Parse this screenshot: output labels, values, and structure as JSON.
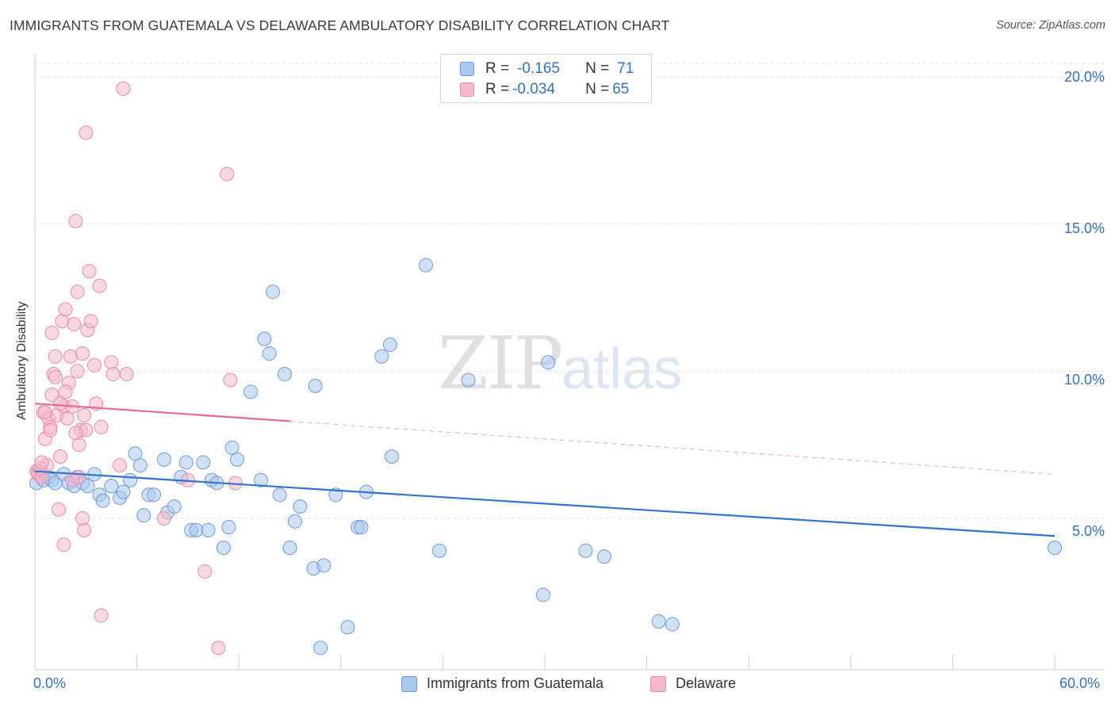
{
  "header": {
    "title": "IMMIGRANTS FROM GUATEMALA VS DELAWARE AMBULATORY DISABILITY CORRELATION CHART",
    "source": "Source: ZipAtlas.com"
  },
  "watermark": {
    "zip": "ZIP",
    "atlas": "atlas"
  },
  "legend": {
    "rows": [
      {
        "r_label": "R = ",
        "r_value": "-0.165",
        "n_label": "N = ",
        "n_value": "71",
        "color": "#a9c8ee"
      },
      {
        "r_label": "R = ",
        "r_value": "-0.034",
        "n_label": "N = ",
        "n_value": "65",
        "color": "#f5b8cb"
      }
    ]
  },
  "bottom_legend": {
    "items": [
      {
        "label": "Immigrants from Guatemala",
        "color": "#a9c8ee"
      },
      {
        "label": "Delaware",
        "color": "#f5b8cb"
      }
    ]
  },
  "axes": {
    "x_left": "0.0%",
    "x_right": "60.0%",
    "y_ticks": [
      "20.0%",
      "15.0%",
      "10.0%",
      "5.0%"
    ],
    "ylabel": "Ambulatory Disability"
  },
  "colors": {
    "blue_fill": "#a9c8ee",
    "blue_stroke": "#6b9bd8",
    "blue_line": "#2e75d0",
    "pink_fill": "#f5b8cb",
    "pink_stroke": "#e88aa8",
    "pink_line": "#e8649a",
    "grid": "#e3e3e3",
    "tick_text": "#3370c9"
  },
  "chart_data": {
    "type": "scatter",
    "title": "IMMIGRANTS FROM GUATEMALA VS DELAWARE AMBULATORY DISABILITY CORRELATION CHART",
    "xlabel": "",
    "ylabel": "Ambulatory Disability",
    "xlim": [
      0,
      60
    ],
    "ylim": [
      0,
      21
    ],
    "y_gridlines": [
      5,
      10,
      15,
      20
    ],
    "x_ticks": [
      0,
      6,
      12,
      18,
      24,
      30,
      36,
      42,
      48,
      54,
      60
    ],
    "legend_position": "top-center",
    "series": [
      {
        "name": "Immigrants from Guatemala",
        "r": -0.165,
        "n": 71,
        "trend": {
          "x": [
            0,
            60
          ],
          "y": [
            6.6,
            4.4
          ],
          "solid_to": 60
        },
        "points": [
          [
            0.1,
            6.2
          ],
          [
            0.5,
            6.3
          ],
          [
            0.8,
            6.4
          ],
          [
            1.0,
            6.3
          ],
          [
            1.2,
            6.2
          ],
          [
            1.7,
            6.5
          ],
          [
            2.0,
            6.2
          ],
          [
            2.3,
            6.1
          ],
          [
            2.5,
            6.4
          ],
          [
            2.8,
            6.2
          ],
          [
            3.1,
            6.1
          ],
          [
            3.5,
            6.5
          ],
          [
            3.8,
            5.8
          ],
          [
            4.0,
            5.6
          ],
          [
            4.5,
            6.1
          ],
          [
            5.0,
            5.7
          ],
          [
            5.2,
            5.9
          ],
          [
            5.6,
            6.3
          ],
          [
            5.9,
            7.2
          ],
          [
            6.2,
            6.8
          ],
          [
            6.4,
            5.1
          ],
          [
            6.7,
            5.8
          ],
          [
            7.0,
            5.8
          ],
          [
            7.6,
            7.0
          ],
          [
            7.8,
            5.2
          ],
          [
            8.2,
            5.4
          ],
          [
            8.6,
            6.4
          ],
          [
            8.9,
            6.9
          ],
          [
            9.2,
            4.6
          ],
          [
            9.5,
            4.6
          ],
          [
            9.9,
            6.9
          ],
          [
            10.2,
            4.6
          ],
          [
            10.4,
            6.3
          ],
          [
            10.7,
            6.2
          ],
          [
            11.1,
            4.0
          ],
          [
            11.4,
            4.7
          ],
          [
            11.6,
            7.4
          ],
          [
            11.9,
            7.0
          ],
          [
            12.7,
            9.3
          ],
          [
            13.3,
            6.3
          ],
          [
            13.5,
            11.1
          ],
          [
            13.8,
            10.6
          ],
          [
            14.0,
            12.7
          ],
          [
            14.4,
            5.8
          ],
          [
            14.7,
            9.9
          ],
          [
            15.0,
            4.0
          ],
          [
            15.3,
            4.9
          ],
          [
            15.6,
            5.4
          ],
          [
            16.4,
            3.3
          ],
          [
            16.5,
            9.5
          ],
          [
            16.8,
            0.6
          ],
          [
            17.0,
            3.4
          ],
          [
            17.7,
            5.8
          ],
          [
            18.4,
            1.3
          ],
          [
            19.0,
            4.7
          ],
          [
            19.2,
            4.7
          ],
          [
            19.5,
            5.9
          ],
          [
            20.4,
            10.5
          ],
          [
            20.9,
            10.9
          ],
          [
            21.0,
            7.1
          ],
          [
            23.0,
            13.6
          ],
          [
            23.8,
            3.9
          ],
          [
            25.5,
            9.7
          ],
          [
            29.9,
            2.4
          ],
          [
            30.2,
            10.3
          ],
          [
            32.4,
            3.9
          ],
          [
            33.5,
            3.7
          ],
          [
            36.7,
            1.5
          ],
          [
            37.5,
            1.4
          ],
          [
            60.0,
            4.0
          ],
          [
            0.2,
            6.6
          ]
        ]
      },
      {
        "name": "Delaware",
        "r": -0.034,
        "n": 65,
        "trend": {
          "x": [
            0,
            60
          ],
          "y": [
            8.9,
            6.5
          ],
          "solid_to": 15
        },
        "points": [
          [
            0.1,
            6.6
          ],
          [
            0.2,
            6.5
          ],
          [
            0.4,
            6.4
          ],
          [
            0.5,
            8.6
          ],
          [
            0.6,
            7.7
          ],
          [
            0.8,
            8.4
          ],
          [
            0.9,
            8.1
          ],
          [
            1.0,
            11.3
          ],
          [
            1.1,
            9.9
          ],
          [
            1.2,
            10.5
          ],
          [
            1.3,
            8.5
          ],
          [
            1.4,
            5.3
          ],
          [
            1.5,
            7.1
          ],
          [
            1.6,
            11.7
          ],
          [
            1.7,
            8.8
          ],
          [
            1.8,
            12.1
          ],
          [
            1.9,
            8.4
          ],
          [
            2.0,
            9.6
          ],
          [
            2.1,
            10.5
          ],
          [
            2.2,
            8.8
          ],
          [
            2.3,
            11.6
          ],
          [
            2.4,
            15.1
          ],
          [
            2.5,
            12.7
          ],
          [
            2.6,
            7.5
          ],
          [
            2.7,
            8.0
          ],
          [
            2.8,
            10.6
          ],
          [
            2.9,
            8.5
          ],
          [
            3.0,
            18.1
          ],
          [
            3.1,
            11.4
          ],
          [
            3.2,
            13.4
          ],
          [
            3.3,
            11.7
          ],
          [
            3.5,
            10.2
          ],
          [
            3.6,
            8.9
          ],
          [
            3.8,
            12.9
          ],
          [
            4.5,
            10.3
          ],
          [
            4.6,
            9.9
          ],
          [
            5.0,
            6.8
          ],
          [
            5.2,
            19.6
          ],
          [
            5.4,
            9.9
          ],
          [
            7.6,
            5.0
          ],
          [
            9.0,
            6.3
          ],
          [
            10.0,
            3.2
          ],
          [
            10.8,
            0.6
          ],
          [
            11.3,
            16.7
          ],
          [
            11.5,
            9.7
          ],
          [
            11.8,
            6.2
          ],
          [
            2.5,
            10.0
          ],
          [
            1.0,
            9.2
          ],
          [
            0.7,
            6.8
          ],
          [
            2.6,
            6.4
          ],
          [
            3.9,
            8.1
          ],
          [
            1.5,
            8.9
          ],
          [
            2.9,
            4.6
          ],
          [
            2.8,
            5.0
          ],
          [
            1.7,
            4.1
          ],
          [
            3.9,
            1.7
          ],
          [
            0.3,
            6.7
          ],
          [
            0.9,
            8.0
          ],
          [
            2.2,
            6.3
          ],
          [
            1.2,
            9.8
          ],
          [
            0.6,
            8.6
          ],
          [
            3.0,
            8.0
          ],
          [
            1.8,
            9.3
          ],
          [
            2.4,
            7.9
          ],
          [
            0.4,
            6.9
          ]
        ]
      }
    ]
  }
}
